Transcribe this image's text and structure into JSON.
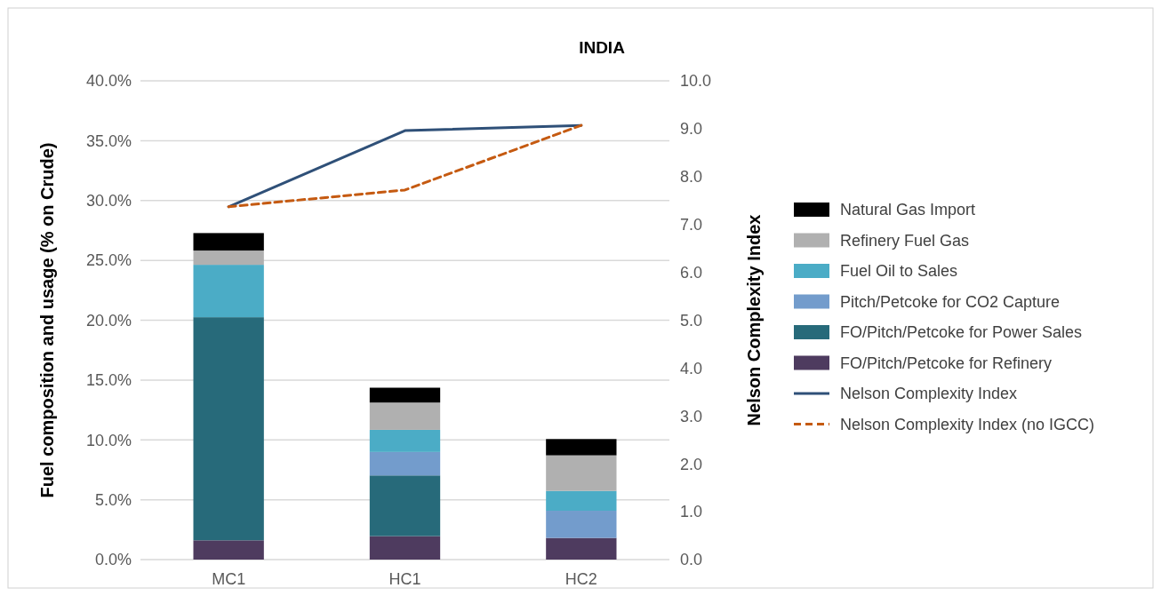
{
  "chart_data": {
    "type": "bar",
    "title": "INDIA",
    "ylabel": "Fuel composition and usage (% on Crude)",
    "y2label": "Nelson Complexity Index",
    "categories": [
      "MC1",
      "HC1",
      "HC2"
    ],
    "stacked": true,
    "series": [
      {
        "name": "FO/Pitch/Petcoke for Refinery",
        "color": "#4e3b5f",
        "values": [
          1.61,
          1.96,
          1.81
        ]
      },
      {
        "name": "FO/Pitch/Petcoke for Power Sales",
        "color": "#276a7a",
        "values": [
          18.64,
          5.07,
          0
        ]
      },
      {
        "name": "Pitch/Petcoke for CO2 Capture",
        "color": "#739ccc",
        "values": [
          0,
          1.96,
          2.27
        ]
      },
      {
        "name": "Fuel Oil to Sales",
        "color": "#4bacc6",
        "values": [
          4.38,
          1.85,
          1.66
        ]
      },
      {
        "name": "Refinery Fuel Gas",
        "color": "#b0b0b0",
        "values": [
          1.19,
          2.28,
          2.97
        ]
      },
      {
        "name": "Natural Gas Import",
        "color": "#000000",
        "values": [
          1.46,
          1.24,
          1.36
        ]
      },
      {
        "name": "Nelson Complexity Index",
        "type": "line",
        "axis": "y2",
        "line_style": "solid",
        "color": "#2f5078",
        "values": [
          7.37,
          8.96,
          9.07
        ]
      },
      {
        "name": "Nelson Complexity Index (no IGCC)",
        "type": "line",
        "axis": "y2",
        "line_style": "dashed",
        "color": "#c55a11",
        "values": [
          7.37,
          7.72,
          9.07
        ]
      }
    ],
    "ylim": [
      0,
      40
    ],
    "yticks": [
      {
        "value": 0,
        "label": "0.0%"
      },
      {
        "value": 5,
        "label": "5.0%"
      },
      {
        "value": 10,
        "label": "10.0%"
      },
      {
        "value": 15,
        "label": "15.0%"
      },
      {
        "value": 20,
        "label": "20.0%"
      },
      {
        "value": 25,
        "label": "25.0%"
      },
      {
        "value": 30,
        "label": "30.0%"
      },
      {
        "value": 35,
        "label": "35.0%"
      },
      {
        "value": 40,
        "label": "40.0%"
      }
    ],
    "y2lim": [
      0,
      10
    ],
    "y2ticks": [
      {
        "value": 0,
        "label": "0.0"
      },
      {
        "value": 1,
        "label": "1.0"
      },
      {
        "value": 2,
        "label": "2.0"
      },
      {
        "value": 3,
        "label": "3.0"
      },
      {
        "value": 4,
        "label": "4.0"
      },
      {
        "value": 5,
        "label": "5.0"
      },
      {
        "value": 6,
        "label": "6.0"
      },
      {
        "value": 7,
        "label": "7.0"
      },
      {
        "value": 8,
        "label": "8.0"
      },
      {
        "value": 9,
        "label": "9.0"
      },
      {
        "value": 10,
        "label": "10.0"
      }
    ],
    "grid": "y",
    "legend": "right",
    "marker": "none"
  }
}
